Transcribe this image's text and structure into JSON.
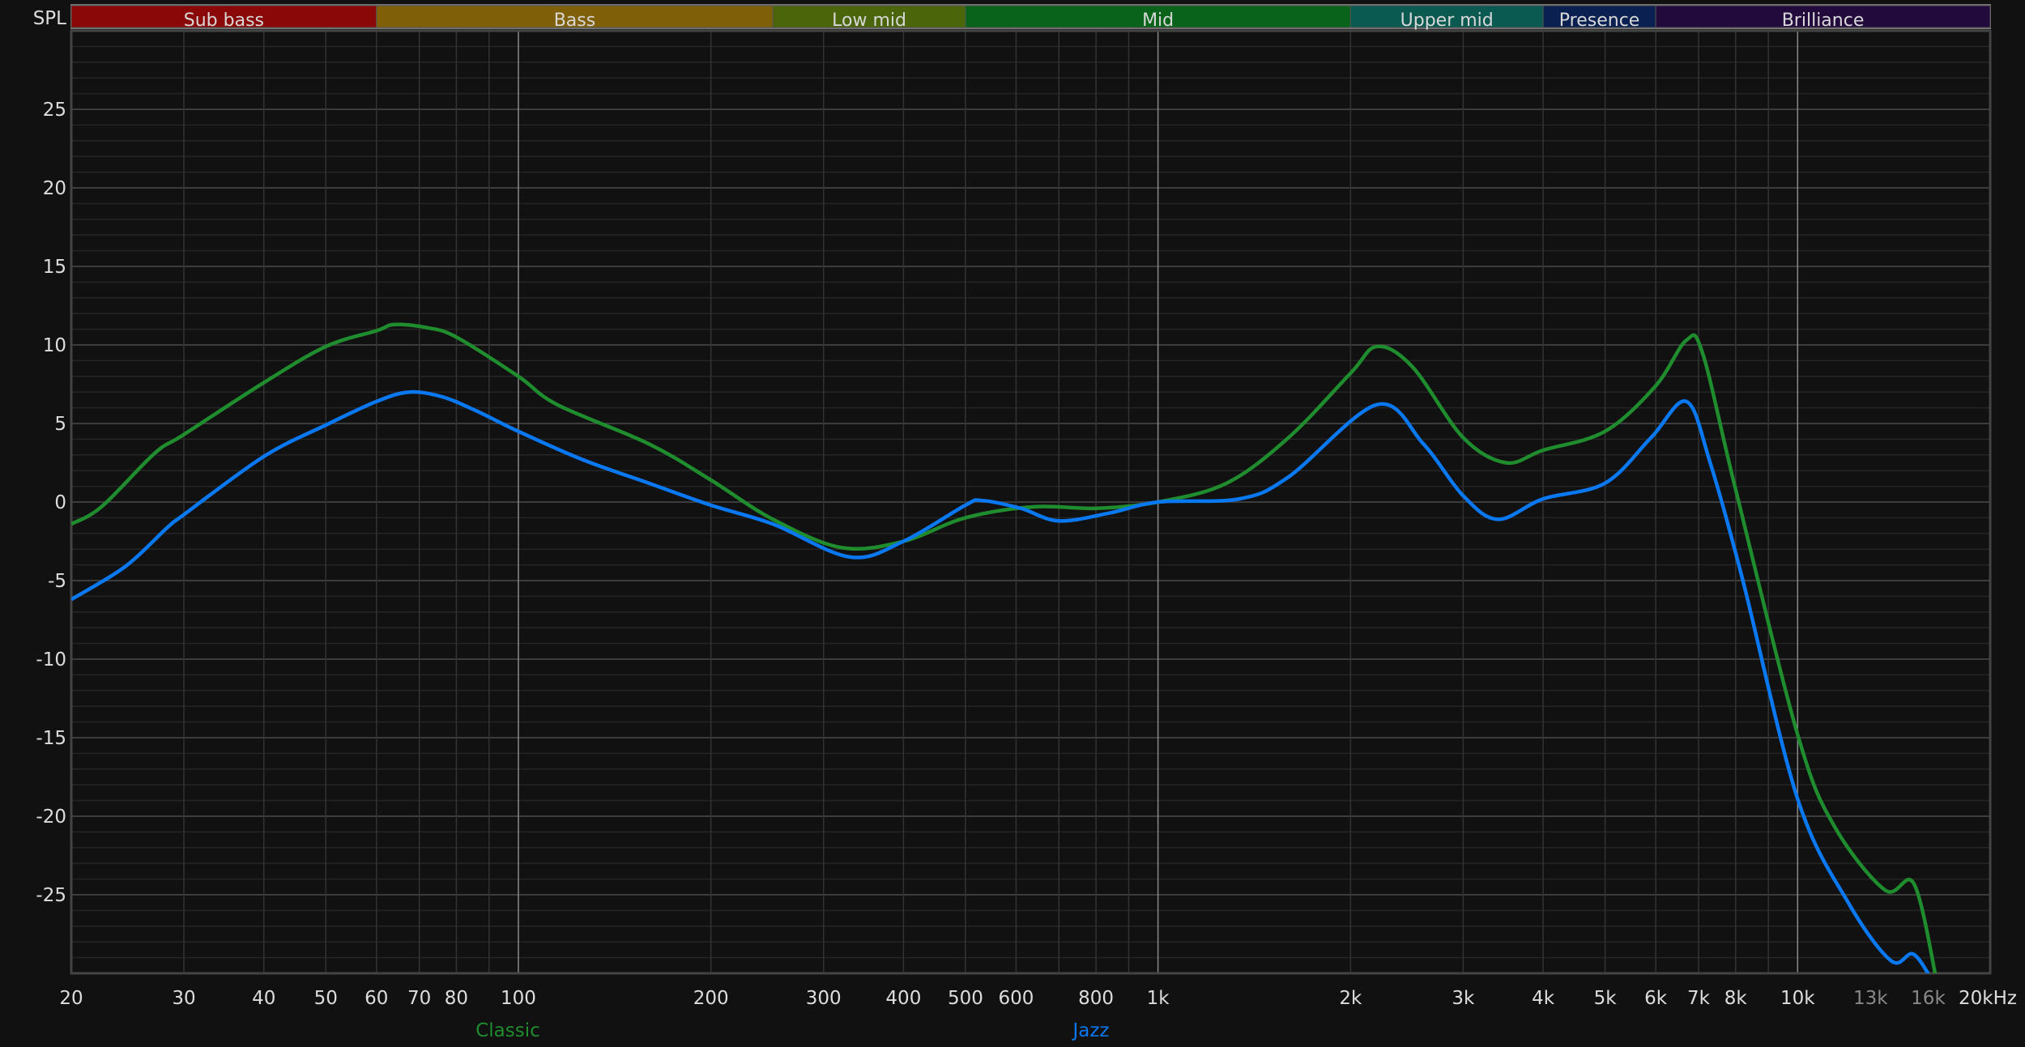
{
  "chart_data": {
    "type": "line",
    "title": "",
    "ylabel": "SPL",
    "xunit": "kHz",
    "xscale": "log",
    "xlim": [
      20,
      20000
    ],
    "ylim": [
      -30,
      30
    ],
    "grid": true,
    "yticks": [
      25,
      20,
      15,
      10,
      5,
      0,
      -5,
      -10,
      -15,
      -20,
      -25
    ],
    "xticks": [
      {
        "value": 20,
        "label": "20"
      },
      {
        "value": 30,
        "label": "30"
      },
      {
        "value": 40,
        "label": "40"
      },
      {
        "value": 50,
        "label": "50"
      },
      {
        "value": 60,
        "label": "60"
      },
      {
        "value": 70,
        "label": "70"
      },
      {
        "value": 80,
        "label": "80"
      },
      {
        "value": 100,
        "label": "100"
      },
      {
        "value": 200,
        "label": "200"
      },
      {
        "value": 300,
        "label": "300"
      },
      {
        "value": 400,
        "label": "400"
      },
      {
        "value": 500,
        "label": "500"
      },
      {
        "value": 600,
        "label": "600"
      },
      {
        "value": 800,
        "label": "800"
      },
      {
        "value": 1000,
        "label": "1k"
      },
      {
        "value": 2000,
        "label": "2k"
      },
      {
        "value": 3000,
        "label": "3k"
      },
      {
        "value": 4000,
        "label": "4k"
      },
      {
        "value": 5000,
        "label": "5k"
      },
      {
        "value": 6000,
        "label": "6k"
      },
      {
        "value": 7000,
        "label": "7k"
      },
      {
        "value": 8000,
        "label": "8k"
      },
      {
        "value": 10000,
        "label": "10k"
      },
      {
        "value": 13000,
        "label": "13k",
        "dim": true
      },
      {
        "value": 16000,
        "label": "16k",
        "dim": true
      },
      {
        "value": 20000,
        "label": "20kHz"
      }
    ],
    "bands": [
      {
        "name": "Sub bass",
        "from": 20,
        "to": 60,
        "color": "#8a0808"
      },
      {
        "name": "Bass",
        "from": 60,
        "to": 250,
        "color": "#7f6008"
      },
      {
        "name": "Low mid",
        "from": 250,
        "to": 500,
        "color": "#4a650a"
      },
      {
        "name": "Mid",
        "from": 500,
        "to": 2000,
        "color": "#0a631a"
      },
      {
        "name": "Upper mid",
        "from": 2000,
        "to": 4000,
        "color": "#0a5a52"
      },
      {
        "name": "Presence",
        "from": 4000,
        "to": 6000,
        "color": "#0a2050"
      },
      {
        "name": "Brilliance",
        "from": 6000,
        "to": 20000,
        "color": "#220a3c"
      }
    ],
    "legend_placement": "bottom",
    "series": [
      {
        "name": "Classic",
        "color": "#1f8c2e",
        "x": [
          20,
          22.3,
          27,
          30,
          40,
          50,
          60,
          64,
          72,
          80,
          100,
          115,
          160,
          200,
          250,
          320,
          400,
          500,
          640,
          800,
          1000,
          1280,
          1600,
          2000,
          2200,
          2500,
          3000,
          3500,
          4000,
          5000,
          6000,
          6700,
          7100,
          8000,
          10000,
          11400,
          13700,
          15200,
          16500
        ],
        "y": [
          -1.4,
          -0.3,
          3.1,
          4.3,
          7.6,
          9.9,
          10.9,
          11.3,
          11.1,
          10.5,
          8.0,
          6.2,
          3.7,
          1.4,
          -1.1,
          -2.9,
          -2.5,
          -1.0,
          -0.3,
          -0.4,
          0,
          1.2,
          4.1,
          8.2,
          9.9,
          8.6,
          4.1,
          2.5,
          3.3,
          4.5,
          7.4,
          10.3,
          9.5,
          0.8,
          -14.8,
          -20.6,
          -24.7,
          -24.3,
          -30.5
        ]
      },
      {
        "name": "Jazz",
        "color": "#0a78f0",
        "x": [
          20,
          24.3,
          28.3,
          30,
          40,
          50,
          60,
          67.5,
          76,
          86,
          100,
          126,
          160,
          200,
          250,
          330,
          400,
          500,
          530,
          610,
          700,
          840,
          1000,
          1340,
          1600,
          2200,
          2600,
          3000,
          3400,
          4000,
          5000,
          5900,
          6700,
          7300,
          8200,
          10000,
          12000,
          14000,
          15200,
          16500
        ],
        "y": [
          -6.2,
          -4.1,
          -1.6,
          -0.8,
          2.9,
          4.9,
          6.4,
          7.0,
          6.7,
          5.8,
          4.5,
          2.7,
          1.2,
          -0.2,
          -1.4,
          -3.5,
          -2.5,
          -0.2,
          0.1,
          -0.4,
          -1.2,
          -0.7,
          0,
          0.2,
          1.6,
          6.2,
          3.7,
          0.4,
          -1.1,
          0.2,
          1.2,
          4.1,
          6.4,
          2.5,
          -4.9,
          -18.9,
          -25.5,
          -29.2,
          -28.8,
          -31
        ]
      }
    ]
  }
}
